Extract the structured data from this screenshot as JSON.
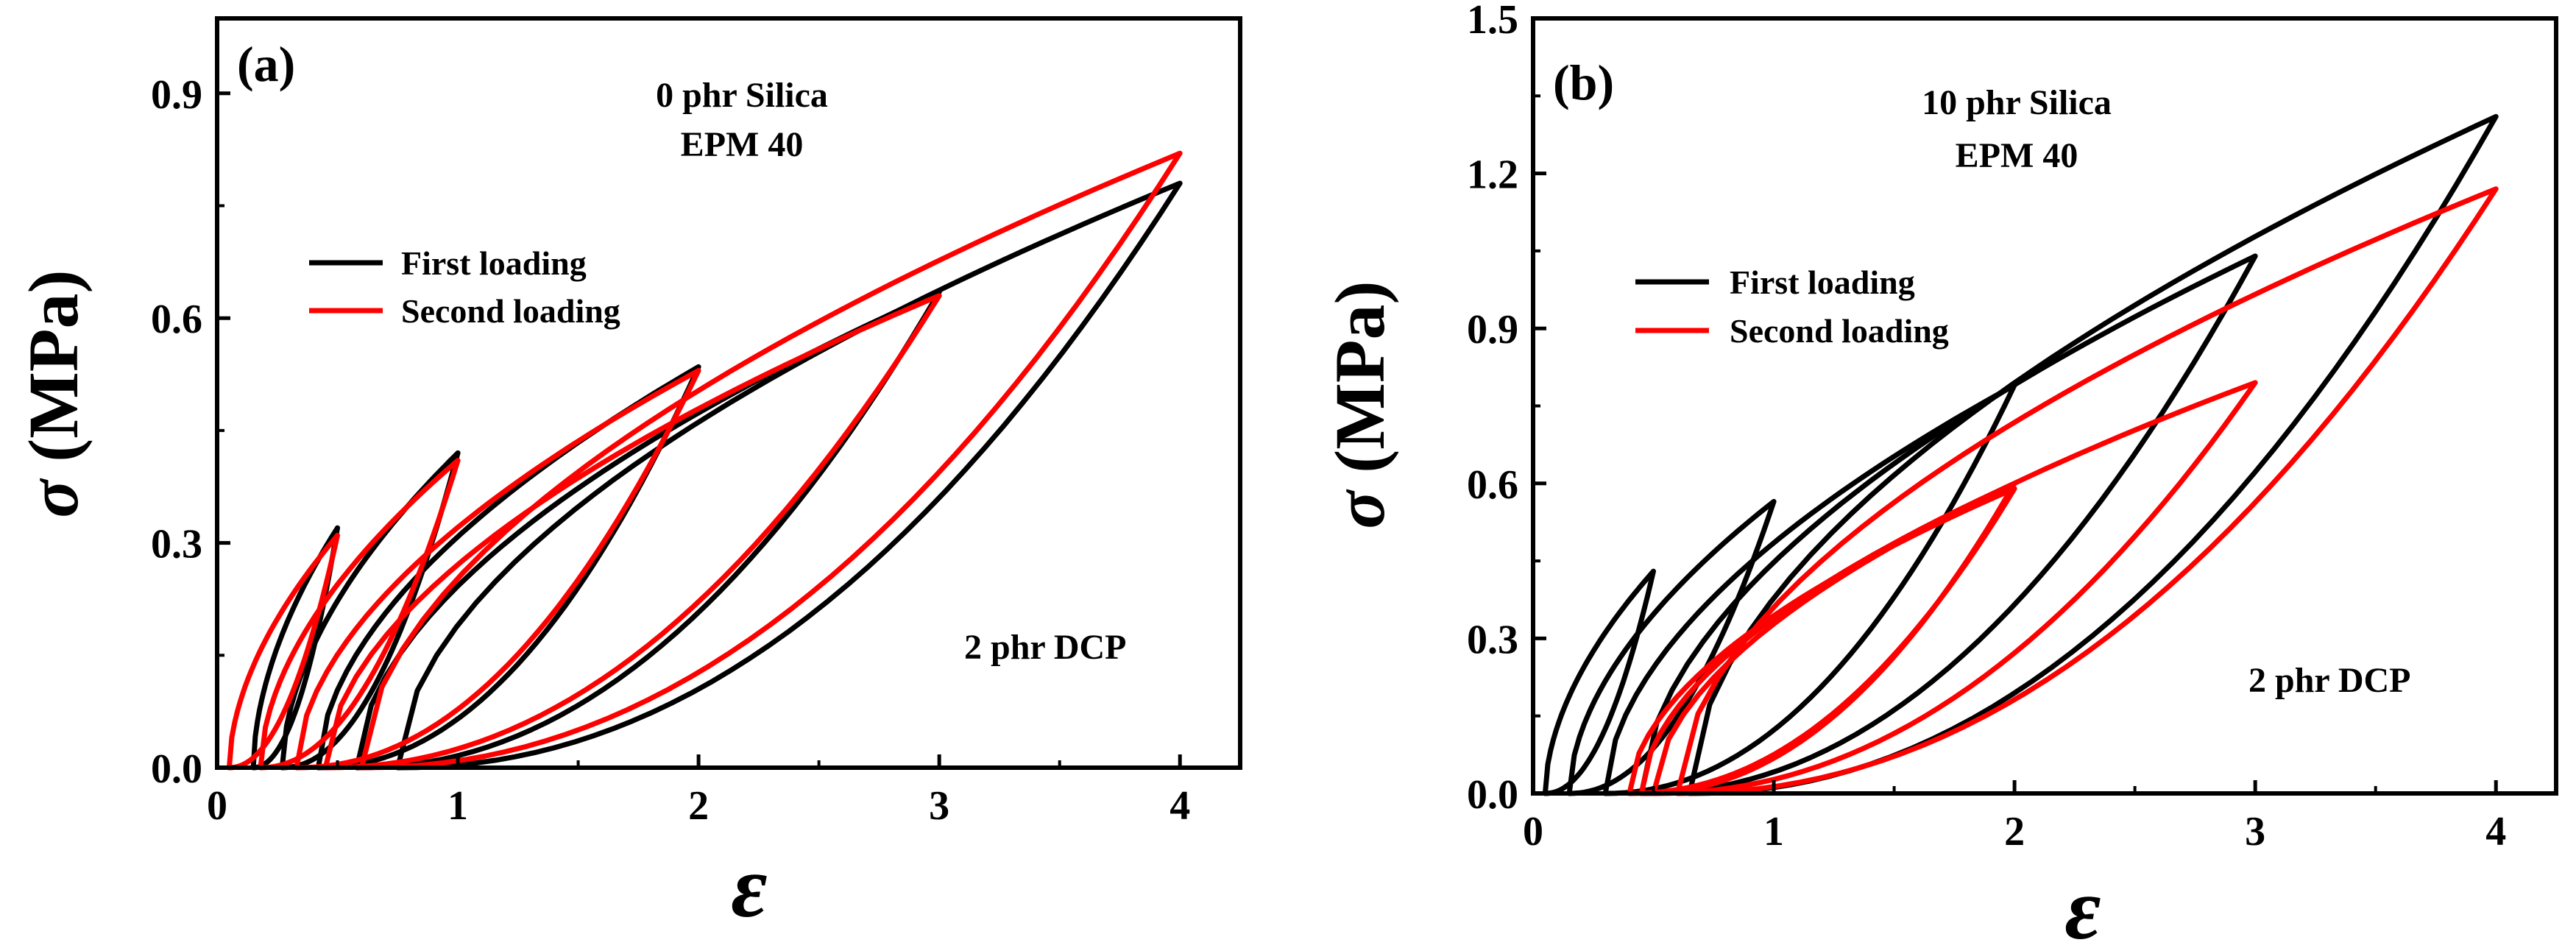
{
  "chart_data": [
    {
      "type": "line",
      "panel_label": "(a)",
      "annotations": [
        "0 phr Silica",
        "EPM  40",
        "2 phr DCP"
      ],
      "xlabel": "ε",
      "ylabel_symbol": "σ",
      "ylabel_unit": " (MPa)",
      "xlim": [
        0,
        4.25
      ],
      "ylim": [
        0,
        1.0
      ],
      "xticks": [
        0,
        1,
        2,
        3,
        4
      ],
      "xtick_labels": [
        "0",
        "1",
        "2",
        "3",
        "4"
      ],
      "yticks": [
        0,
        0.3,
        0.6,
        0.9
      ],
      "ytick_labels": [
        "0.0",
        "0.3",
        "0.6",
        "0.9"
      ],
      "legend": {
        "position": "upper-left",
        "entries": [
          {
            "label": "First loading",
            "color": "#000000"
          },
          {
            "label": "Second loading",
            "color": "#ff0000"
          }
        ]
      },
      "series": [
        {
          "name": "First loading",
          "color": "#000000",
          "cycles": [
            {
              "max_strain": 0.5,
              "peak_stress": 0.32,
              "residual_strain": 0.15
            },
            {
              "max_strain": 1.0,
              "peak_stress": 0.42,
              "residual_strain": 0.27
            },
            {
              "max_strain": 2.0,
              "peak_stress": 0.535,
              "residual_strain": 0.42
            },
            {
              "max_strain": 3.0,
              "peak_stress": 0.635,
              "residual_strain": 0.58
            },
            {
              "max_strain": 4.0,
              "peak_stress": 0.78,
              "residual_strain": 0.75
            }
          ]
        },
        {
          "name": "Second loading",
          "color": "#ff0000",
          "cycles": [
            {
              "max_strain": 0.5,
              "peak_stress": 0.31,
              "residual_strain": 0.05
            },
            {
              "max_strain": 1.0,
              "peak_stress": 0.41,
              "residual_strain": 0.18
            },
            {
              "max_strain": 2.0,
              "peak_stress": 0.53,
              "residual_strain": 0.33
            },
            {
              "max_strain": 3.0,
              "peak_stress": 0.63,
              "residual_strain": 0.45
            },
            {
              "max_strain": 4.0,
              "peak_stress": 0.82,
              "residual_strain": 0.6
            }
          ]
        }
      ]
    },
    {
      "type": "line",
      "panel_label": "(b)",
      "annotations": [
        "10 phr Silica",
        "EPM  40",
        "2 phr DCP"
      ],
      "xlabel": "ε",
      "ylabel_symbol": "σ",
      "ylabel_unit": " (MPa)",
      "xlim": [
        0,
        4.25
      ],
      "ylim": [
        0,
        1.5
      ],
      "xticks": [
        0,
        1,
        2,
        3,
        4
      ],
      "xtick_labels": [
        "0",
        "1",
        "2",
        "3",
        "4"
      ],
      "yticks": [
        0,
        0.3,
        0.6,
        0.9,
        1.2,
        1.5
      ],
      "ytick_labels": [
        "0.0",
        "0.3",
        "0.6",
        "0.9",
        "1.2",
        "1.5"
      ],
      "legend": {
        "position": "upper-left",
        "entries": [
          {
            "label": "First loading",
            "color": "#000000"
          },
          {
            "label": "Second loading",
            "color": "#ff0000"
          }
        ]
      },
      "series": [
        {
          "name": "First loading",
          "color": "#000000",
          "cycles": [
            {
              "max_strain": 0.5,
              "peak_stress": 0.43,
              "residual_strain": 0.05
            },
            {
              "max_strain": 1.0,
              "peak_stress": 0.565,
              "residual_strain": 0.15
            },
            {
              "max_strain": 2.0,
              "peak_stress": 0.79,
              "residual_strain": 0.3
            },
            {
              "max_strain": 3.0,
              "peak_stress": 1.04,
              "residual_strain": 0.45
            },
            {
              "max_strain": 4.0,
              "peak_stress": 1.31,
              "residual_strain": 0.65
            }
          ]
        },
        {
          "name": "Second loading",
          "color": "#ff0000",
          "cycles": [
            {
              "max_strain": 2.0,
              "peak_stress": 0.59,
              "residual_strain": 0.4
            },
            {
              "max_strain": 2.0,
              "peak_stress": 0.6,
              "residual_strain": 0.45
            },
            {
              "max_strain": 3.0,
              "peak_stress": 0.795,
              "residual_strain": 0.5
            },
            {
              "max_strain": 4.0,
              "peak_stress": 1.17,
              "residual_strain": 0.6
            }
          ]
        }
      ]
    }
  ]
}
